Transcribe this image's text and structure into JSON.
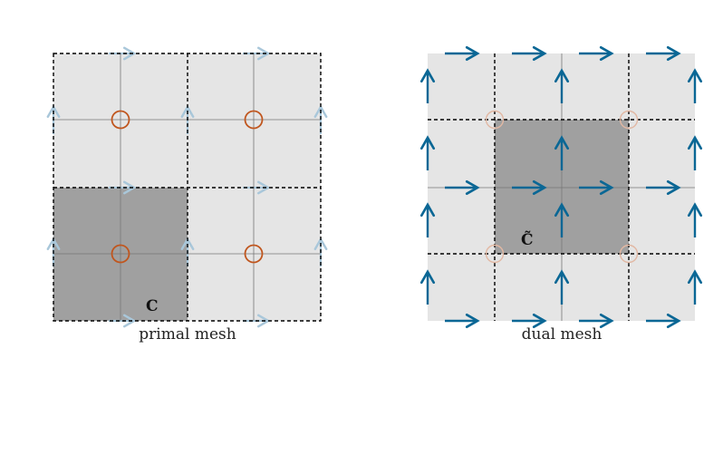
{
  "primal": {
    "caption": "primal mesh",
    "cell_label": "C"
  },
  "dual": {
    "caption": "dual mesh",
    "cell_label": "C̃"
  },
  "colors": {
    "background_cell": "#e5e5e5",
    "highlight_cell": "#a0a0a0",
    "grid_line": "#777777",
    "dashed_edge": "#000000",
    "node_circle": "#c0561e",
    "node_circle_faded": "#e2b8a3",
    "arrow": "#0a6795",
    "arrow_faded": "#a9c7da"
  }
}
